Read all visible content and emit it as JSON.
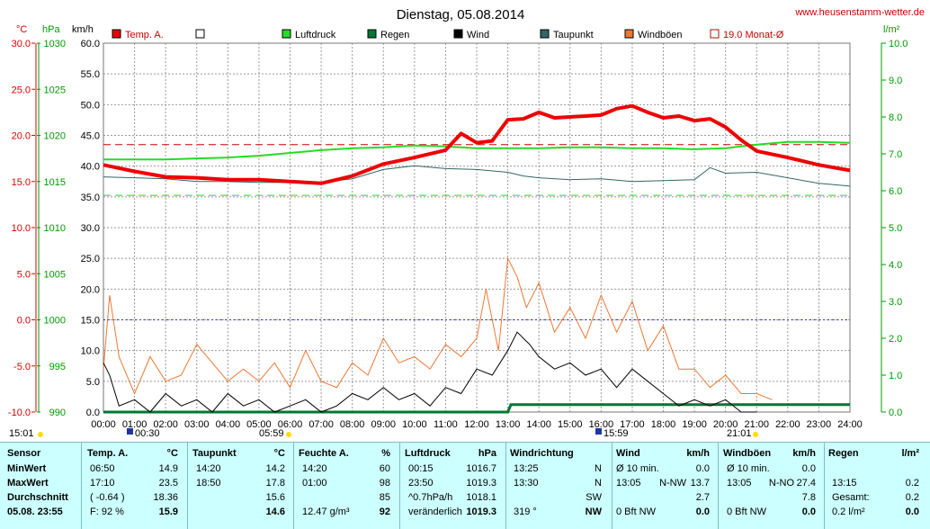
{
  "site": "www.heusenstamm-wetter.de",
  "colors": {
    "temp": "#ee0000",
    "luftdruck": "#22dd22",
    "regen": "#007733",
    "wind": "#000000",
    "taupunkt": "#336666",
    "windboeen": "#ee7733",
    "monat": "#cc0000",
    "grid": "#999999",
    "table_bg": "#ccffff"
  },
  "chart_data": {
    "type": "line",
    "title": "Dienstag, 05.08.2014",
    "axes": {
      "temp": {
        "unit": "°C",
        "range": [
          -10.0,
          30.0
        ],
        "ticks": [
          "-10.0",
          "-5.0",
          "0.0",
          "5.0",
          "10.0",
          "15.0",
          "20.0",
          "25.0",
          "30.0"
        ]
      },
      "pressure": {
        "unit": "hPa",
        "range": [
          990,
          1030
        ],
        "ticks": [
          "990",
          "995",
          "1000",
          "1005",
          "1010",
          "1015",
          "1020",
          "1025",
          "1030"
        ]
      },
      "wind": {
        "unit": "km/h",
        "range": [
          0.0,
          60.0
        ],
        "ticks": [
          "0.0",
          "5.0",
          "10.0",
          "15.0",
          "20.0",
          "25.0",
          "30.0",
          "35.0",
          "40.0",
          "45.0",
          "50.0",
          "55.0",
          "60.0"
        ]
      },
      "rain": {
        "unit": "l/m²",
        "range": [
          0.0,
          10.0
        ],
        "ticks": [
          "0.0",
          "1.0",
          "2.0",
          "3.0",
          "4.0",
          "5.0",
          "6.0",
          "7.0",
          "8.0",
          "9.0",
          "10.0"
        ]
      },
      "time": {
        "range": [
          0,
          24
        ],
        "ticks": [
          "00:00",
          "01:00",
          "02:00",
          "03:00",
          "04:00",
          "05:00",
          "06:00",
          "07:00",
          "08:00",
          "09:00",
          "10:00",
          "11:00",
          "12:00",
          "13:00",
          "14:00",
          "15:00",
          "16:00",
          "17:00",
          "18:00",
          "19:00",
          "20:00",
          "21:00",
          "22:00",
          "23:00",
          "24:00"
        ]
      }
    },
    "legend": [
      {
        "key": "temp",
        "label": "Temp. A."
      },
      {
        "key": "empty",
        "label": ""
      },
      {
        "key": "luftdruck",
        "label": "Luftdruck"
      },
      {
        "key": "regen",
        "label": "Regen"
      },
      {
        "key": "wind",
        "label": "Wind"
      },
      {
        "key": "taupunkt",
        "label": "Taupunkt"
      },
      {
        "key": "windboeen",
        "label": "Windböen"
      },
      {
        "key": "monat",
        "label": "19.0 Monat-Ø"
      }
    ],
    "reference_lines": {
      "monat_avg_temp": 19.0,
      "pressure_1000": 0.0,
      "temp_green_dashed": 13.5
    },
    "sun_markers": {
      "left_label": "15:01",
      "sunrise": "05:59",
      "moonrise": "00:30",
      "moon2": "15:59",
      "sunset": "21:01"
    },
    "series": [
      {
        "key": "temp",
        "x": [
          0,
          1,
          2,
          3,
          4,
          5,
          6,
          7,
          8,
          9,
          10,
          11,
          11.5,
          12,
          12.5,
          13,
          13.5,
          14,
          14.5,
          15,
          15.5,
          16,
          16.5,
          17,
          17.5,
          18,
          18.5,
          19,
          19.5,
          20,
          20.5,
          21,
          22,
          23,
          24
        ],
        "y": [
          16.8,
          16.1,
          15.5,
          15.4,
          15.2,
          15.2,
          15.0,
          14.8,
          15.6,
          16.9,
          17.6,
          18.4,
          20.2,
          19.2,
          19.4,
          21.7,
          21.8,
          22.5,
          21.9,
          22.0,
          22.1,
          22.2,
          22.9,
          23.2,
          22.5,
          21.9,
          22.1,
          21.6,
          21.8,
          20.9,
          19.5,
          18.3,
          17.6,
          16.8,
          16.2
        ]
      },
      {
        "key": "luftdruck",
        "x": [
          0,
          1,
          2,
          3,
          4,
          5,
          6,
          7,
          8,
          9,
          10,
          11,
          12,
          13,
          14,
          15,
          16,
          17,
          18,
          19,
          20,
          21,
          22,
          23,
          24
        ],
        "y": [
          1017.4,
          1017.4,
          1017.4,
          1017.5,
          1017.6,
          1017.8,
          1018.1,
          1018.4,
          1018.6,
          1018.7,
          1018.9,
          1018.8,
          1018.6,
          1018.6,
          1018.6,
          1018.7,
          1018.7,
          1018.6,
          1018.6,
          1018.5,
          1018.6,
          1019.0,
          1019.3,
          1019.3,
          1019.2
        ]
      },
      {
        "key": "taupunkt",
        "x": [
          0,
          1,
          2,
          3,
          4,
          5,
          6,
          7,
          8,
          9,
          10,
          11,
          12,
          13,
          13.5,
          14,
          15,
          16,
          17,
          18,
          19,
          19.5,
          20,
          21,
          22,
          23,
          24
        ],
        "y": [
          15.5,
          15.4,
          15.3,
          15.0,
          15.0,
          14.9,
          14.9,
          14.9,
          15.3,
          16.3,
          16.7,
          16.4,
          16.3,
          16.0,
          15.6,
          15.4,
          15.2,
          15.3,
          15.0,
          15.1,
          15.2,
          16.5,
          15.9,
          16.0,
          15.4,
          14.8,
          14.5
        ]
      },
      {
        "key": "regen",
        "x": [
          0,
          13.0,
          13.1,
          21.0,
          24
        ],
        "y": [
          0,
          0,
          0.2,
          0.2,
          0.2
        ]
      },
      {
        "key": "windboeen",
        "x": [
          0,
          0.2,
          0.5,
          1,
          1.5,
          2,
          2.5,
          3,
          3.5,
          4,
          4.5,
          5,
          5.5,
          6,
          6.5,
          7,
          7.5,
          8,
          8.5,
          9,
          9.5,
          10,
          10.5,
          11,
          11.5,
          12,
          12.3,
          12.7,
          13,
          13.3,
          13.6,
          14,
          14.5,
          15,
          15.5,
          16,
          16.5,
          17,
          17.5,
          18,
          18.5,
          19,
          19.5,
          20,
          20.5,
          21,
          21.5
        ],
        "y": [
          7,
          19,
          9,
          3,
          9,
          5,
          6,
          11,
          8,
          5,
          7,
          5,
          8,
          4,
          10,
          5,
          4,
          8,
          6,
          12,
          8,
          9,
          7,
          11,
          9,
          12,
          20,
          10,
          25,
          22,
          17,
          21,
          13,
          17,
          12,
          19,
          13,
          18,
          10,
          14,
          7,
          7,
          4,
          6,
          3,
          3,
          2
        ]
      },
      {
        "key": "wind",
        "x": [
          0,
          0.2,
          0.5,
          1,
          1.5,
          2,
          2.5,
          3,
          3.5,
          4,
          4.5,
          5,
          5.5,
          6,
          6.5,
          7,
          7.5,
          8,
          8.5,
          9,
          9.5,
          10,
          10.5,
          11,
          11.5,
          12,
          12.5,
          13,
          13.3,
          13.7,
          14,
          14.5,
          15,
          15.5,
          16,
          16.5,
          17,
          17.5,
          18,
          18.5,
          19,
          19.5,
          20,
          20.5,
          21
        ],
        "y": [
          8,
          6,
          1,
          2,
          0,
          3,
          1,
          2,
          0,
          3,
          1,
          2,
          0,
          1,
          2,
          0,
          1,
          3,
          2,
          4,
          2,
          3,
          1,
          4,
          3,
          7,
          6,
          10,
          13,
          11,
          9,
          7,
          8,
          6,
          7,
          4,
          7,
          5,
          3,
          1,
          2,
          1,
          2,
          0,
          0
        ]
      }
    ]
  },
  "table": {
    "headers": {
      "sensor": "Sensor",
      "temp": "Temp. A.",
      "temp_u": "°C",
      "tau": "Taupunkt",
      "tau_u": "°C",
      "feuchte": "Feuchte A.",
      "feuchte_u": "%",
      "luft": "Luftdruck",
      "luft_u": "hPa",
      "richtung": "Windrichtung",
      "wind": "Wind",
      "wind_u": "km/h",
      "boeen": "Windböen",
      "boeen_u": "km/h",
      "regen": "Regen",
      "regen_u": "l/m²"
    },
    "rows": {
      "min": {
        "label": "MinWert",
        "temp_time": "06:50",
        "temp_val": "14.9",
        "tau_time": "14:20",
        "tau_val": "14.2",
        "feuchte_time": "14:20",
        "feuchte_val": "60",
        "luft_time": "00:15",
        "luft_val": "1016.7",
        "richtung_time": "13:25",
        "richtung_val": "N",
        "wind_time": "Ø 10 min.",
        "wind_val": "0.0",
        "boeen_time": "Ø 10 min.",
        "boeen_val": "0.0"
      },
      "max": {
        "label": "MaxWert",
        "temp_time": "17:10",
        "temp_val": "23.5",
        "tau_time": "18:50",
        "tau_val": "17.8",
        "feuchte_time": "01:00",
        "feuchte_val": "98",
        "luft_time": "23:50",
        "luft_val": "1019.3",
        "richtung_time": "13:30",
        "richtung_val": "N",
        "wind_time": "13:05",
        "wind_dir": "N-NW",
        "wind_val": "13.7",
        "boeen_time": "13:05",
        "boeen_dir": "N-NO",
        "boeen_val": "27.4",
        "regen_time": "13:15",
        "regen_val": "0.2"
      },
      "avg": {
        "label": "Durchschnitt",
        "temp_time": "( -0.64 )",
        "temp_val": "18.36",
        "tau_val": "15.6",
        "feuchte_val": "85",
        "luft_time": "^0.7hPa/h",
        "luft_val": "1018.1",
        "richtung_val": "SW",
        "wind_val": "2.7",
        "boeen_val": "7.8",
        "regen_time": "Gesamt:",
        "regen_val": "0.2"
      },
      "cur": {
        "label": "05.08. 23:55",
        "temp_time": "F: 92 %",
        "temp_val": "15.9",
        "tau_val": "14.6",
        "feuchte_time": "12.47 g/m³",
        "feuchte_val": "92",
        "luft_time": "veränderlich",
        "luft_val": "1019.3",
        "richtung_time": "319 °",
        "richtung_val": "NW",
        "wind_time": "0 Bft NW",
        "wind_val": "0.0",
        "boeen_time": "0 Bft NW",
        "boeen_val": "0.0",
        "regen_time": "0.2 l/m²",
        "regen_val": "0.0"
      }
    }
  }
}
